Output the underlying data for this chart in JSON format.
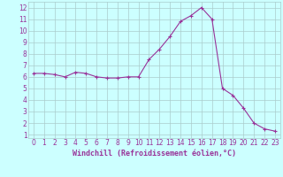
{
  "x": [
    0,
    1,
    2,
    3,
    4,
    5,
    6,
    7,
    8,
    9,
    10,
    11,
    12,
    13,
    14,
    15,
    16,
    17,
    18,
    19,
    20,
    21,
    22,
    23
  ],
  "y": [
    6.3,
    6.3,
    6.2,
    6.0,
    6.4,
    6.3,
    6.0,
    5.9,
    5.9,
    6.0,
    6.0,
    7.5,
    8.4,
    9.5,
    10.8,
    11.3,
    12.0,
    11.0,
    5.0,
    4.4,
    3.3,
    2.0,
    1.5,
    1.3
  ],
  "line_color": "#993399",
  "marker": "+",
  "marker_size": 3,
  "bg_color": "#ccffff",
  "grid_color": "#aacccc",
  "xlabel": "Windchill (Refroidissement éolien,°C)",
  "xlabel_color": "#993399",
  "xlabel_fontsize": 6,
  "tick_color": "#993399",
  "tick_fontsize": 5.5,
  "xlim": [
    -0.5,
    23.5
  ],
  "ylim": [
    0.7,
    12.5
  ],
  "yticks": [
    1,
    2,
    3,
    4,
    5,
    6,
    7,
    8,
    9,
    10,
    11,
    12
  ],
  "xticks": [
    0,
    1,
    2,
    3,
    4,
    5,
    6,
    7,
    8,
    9,
    10,
    11,
    12,
    13,
    14,
    15,
    16,
    17,
    18,
    19,
    20,
    21,
    22,
    23
  ]
}
